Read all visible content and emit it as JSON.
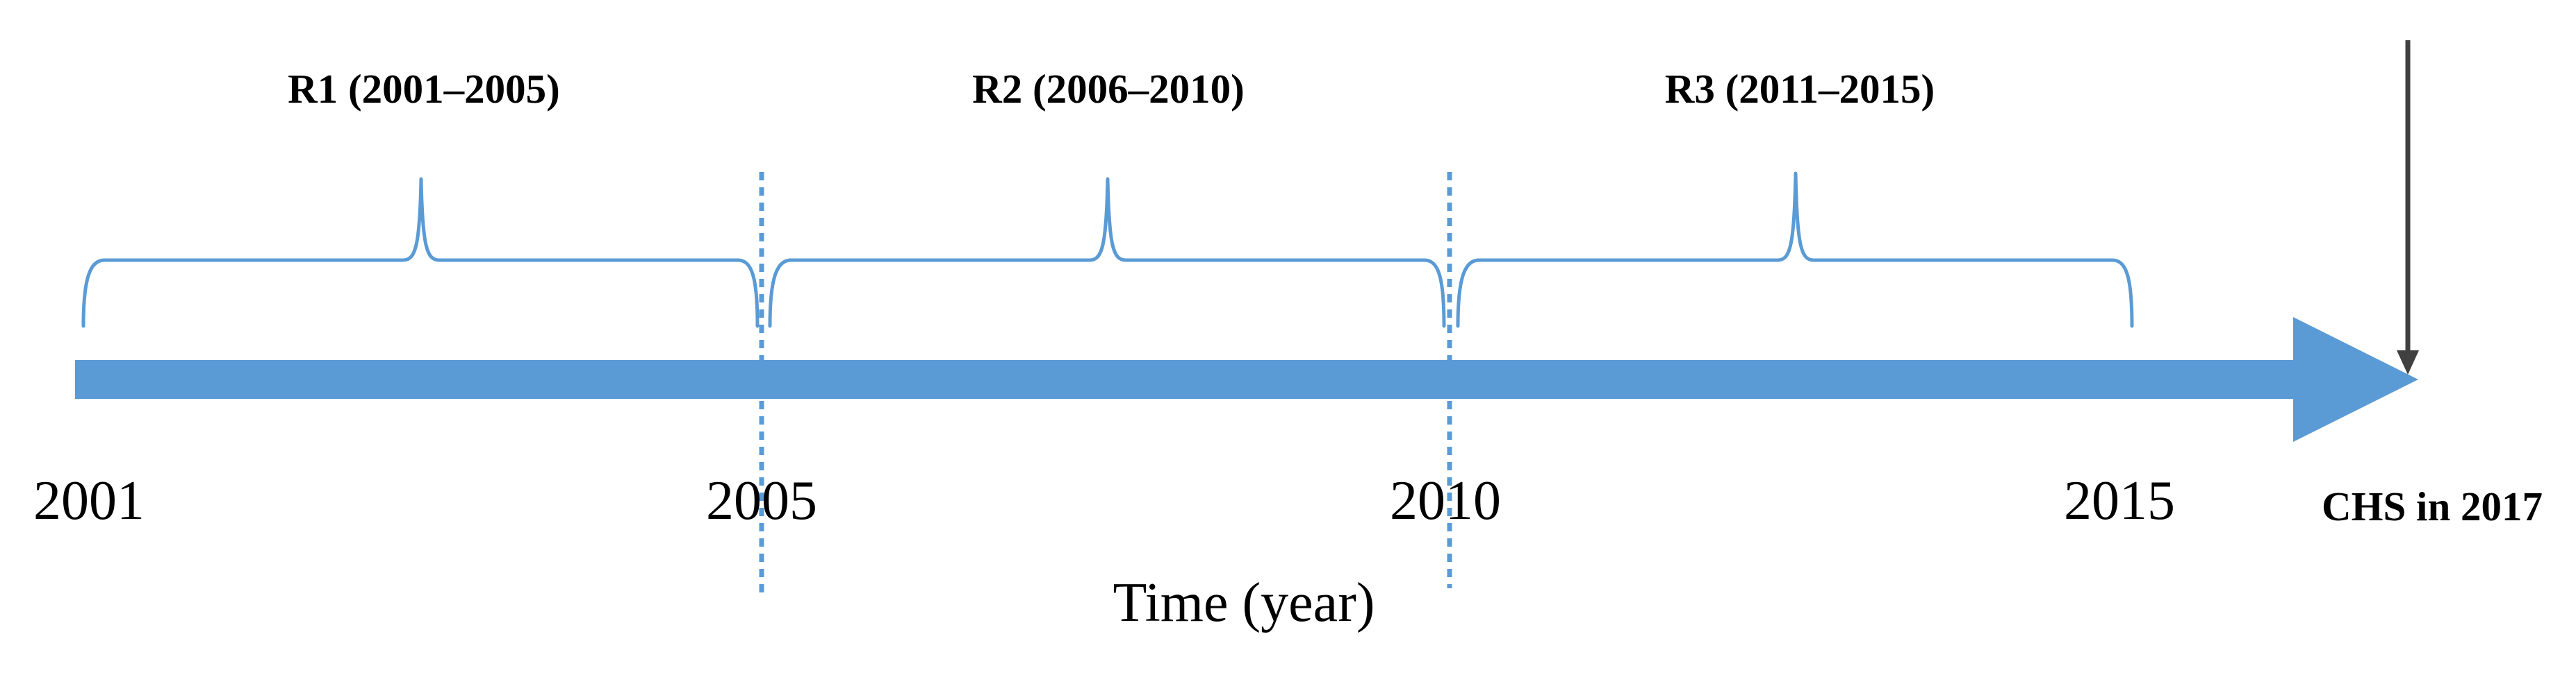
{
  "timeline": {
    "axis_title": "Time (year)",
    "arrow_color": "#5b9bd5",
    "years": [
      {
        "label": "2001"
      },
      {
        "label": "2005"
      },
      {
        "label": "2010"
      },
      {
        "label": "2015"
      }
    ],
    "periods": [
      {
        "label": "R1 (2001–2005)"
      },
      {
        "label": "R2 (2006–2010)"
      },
      {
        "label": "R3 (2011–2015)"
      }
    ],
    "event": {
      "label": "CHS in 2017",
      "marker_color": "#404040"
    }
  }
}
